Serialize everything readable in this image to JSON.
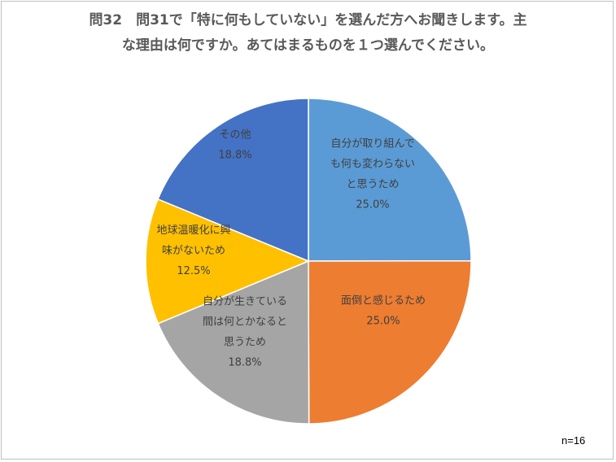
{
  "chart_data": {
    "type": "pie",
    "title_lines": [
      "問32　問31で「特に何もしていない」を選んだ方へお聞きします。主",
      "な理由は何ですか。あてはまるものを１つ選んでください。"
    ],
    "slices": [
      {
        "label_lines": [
          "自分が取り組んで",
          "も何も変わらない",
          "と思うため"
        ],
        "value": 25.0,
        "value_label": "25.0%",
        "color": "#5B9BD5"
      },
      {
        "label_lines": [
          "面倒と感じるため"
        ],
        "value": 25.0,
        "value_label": "25.0%",
        "color": "#ED7D31"
      },
      {
        "label_lines": [
          "自分が生きている",
          "間は何とかなると",
          "思うため"
        ],
        "value": 18.8,
        "value_label": "18.8%",
        "color": "#A5A5A5"
      },
      {
        "label_lines": [
          "地球温暖化に興",
          "味がないため"
        ],
        "value": 12.5,
        "value_label": "12.5%",
        "color": "#FFC000"
      },
      {
        "label_lines": [
          "その他"
        ],
        "value": 18.8,
        "value_label": "18.8%",
        "color": "#4472C4"
      }
    ],
    "start_angle_deg": 0,
    "direction": "clockwise",
    "note": "n=16"
  }
}
